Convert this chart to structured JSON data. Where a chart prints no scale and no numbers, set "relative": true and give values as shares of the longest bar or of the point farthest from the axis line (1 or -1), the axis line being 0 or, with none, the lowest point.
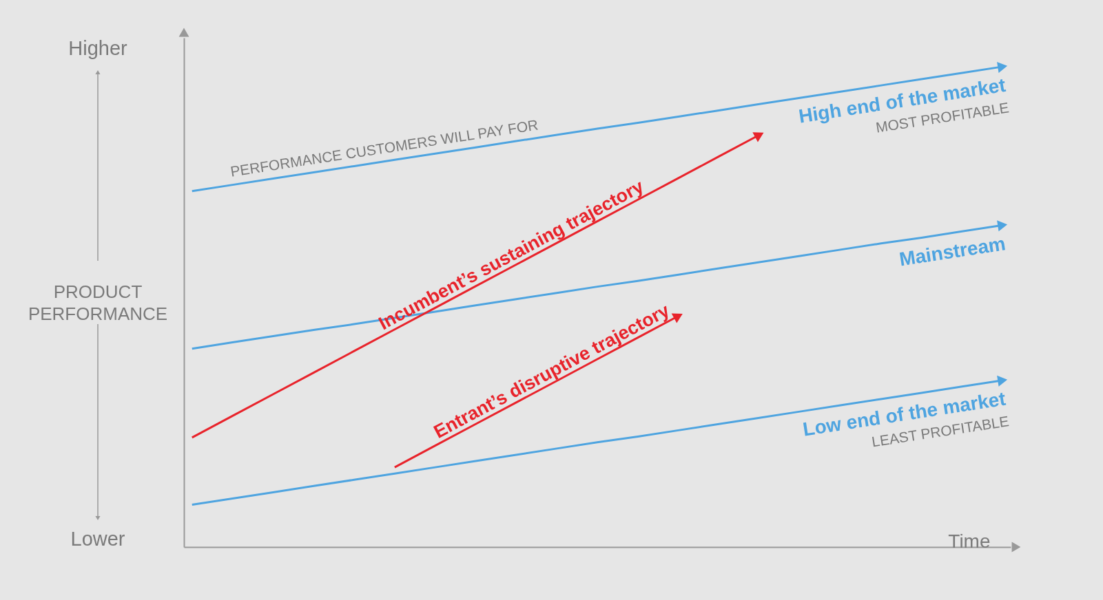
{
  "chart_data": {
    "type": "line",
    "relative": true,
    "xlabel": "Time",
    "ylabel": "PRODUCT PERFORMANCE",
    "categories": [
      null,
      null,
      null,
      null,
      null,
      null,
      null,
      null,
      null,
      null,
      null,
      null,
      null,
      null,
      null,
      null,
      null,
      null,
      null,
      null,
      null
    ],
    "series": [
      {
        "name": "High end of the market",
        "color": "#4ea4e0",
        "values": [
          0.741,
          0.754,
          0.767,
          0.78,
          0.793,
          0.806,
          0.819,
          0.832,
          0.845,
          0.858,
          0.871,
          0.883,
          0.896,
          0.909,
          0.922,
          0.935,
          0.948,
          0.961,
          0.974,
          0.987,
          1.0
        ]
      },
      {
        "name": "Mainstream",
        "color": "#4ea4e0",
        "values": [
          0.413,
          0.426,
          0.439,
          0.452,
          0.464,
          0.477,
          0.49,
          0.503,
          0.516,
          0.529,
          0.542,
          0.554,
          0.567,
          0.58,
          0.593,
          0.606,
          0.619,
          0.632,
          0.644,
          0.657,
          0.67
        ]
      },
      {
        "name": "Low end of the market",
        "color": "#4ea4e0",
        "values": [
          0.088,
          0.101,
          0.114,
          0.127,
          0.14,
          0.153,
          0.166,
          0.179,
          0.192,
          0.205,
          0.218,
          0.23,
          0.243,
          0.256,
          0.269,
          0.282,
          0.295,
          0.308,
          0.321,
          0.334,
          0.347
        ]
      },
      {
        "name": "Incumbent’s sustaining trajectory",
        "color": "#e8232b",
        "values": [
          0.228,
          0.273,
          0.318,
          0.363,
          0.408,
          0.453,
          0.498,
          0.543,
          0.588,
          0.633,
          0.678,
          0.723,
          0.768,
          0.813,
          0.858,
          null,
          null,
          null,
          null,
          null,
          null
        ]
      },
      {
        "name": "Entrant’s disruptive trajectory",
        "color": "#e8232b",
        "values": [
          null,
          null,
          null,
          null,
          null,
          0.166,
          0.211,
          0.256,
          0.301,
          0.346,
          0.391,
          0.436,
          0.481,
          null,
          null,
          null,
          null,
          null,
          null,
          null,
          null
        ]
      }
    ],
    "annotations": [
      "PERFORMANCE CUSTOMERS WILL PAY FOR",
      "MOST PROFITABLE",
      "LEAST PROFITABLE",
      "Higher",
      "Lower"
    ]
  }
}
